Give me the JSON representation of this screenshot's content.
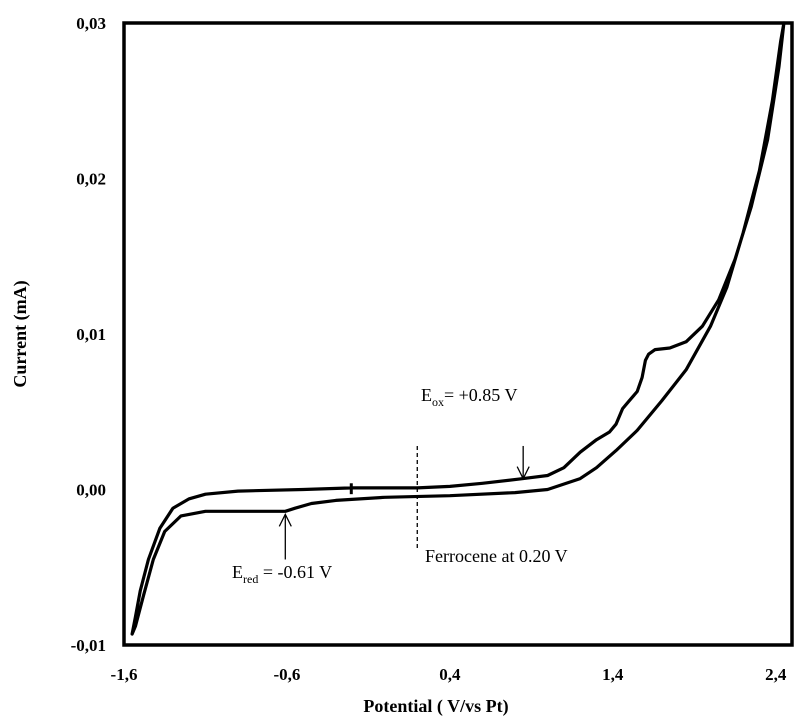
{
  "chart_data": {
    "type": "line",
    "title": "",
    "xlabel": "Potential ( V/vs Pt)",
    "ylabel": "Current (mA)",
    "xlim": [
      -1.6,
      2.5
    ],
    "ylim": [
      -0.01,
      0.03
    ],
    "x_ticks": [
      "-1,6",
      "-0,6",
      "0,4",
      "1,4",
      "2,4"
    ],
    "x_tick_values": [
      -1.6,
      -0.6,
      0.4,
      1.4,
      2.4
    ],
    "y_ticks": [
      "-0,01",
      "0,00",
      "0,01",
      "0,02",
      "0,03"
    ],
    "y_tick_values": [
      -0.01,
      0.0,
      0.01,
      0.02,
      0.03
    ],
    "grid": false,
    "series": [
      {
        "values": [
          [
            -0.2,
            0.0001
          ],
          [
            -0.5,
            0.0
          ],
          [
            -0.9,
            -0.0001
          ],
          [
            -1.1,
            -0.0003
          ],
          [
            -1.2,
            -0.0006
          ],
          [
            -1.3,
            -0.0012
          ],
          [
            -1.38,
            -0.0025
          ],
          [
            -1.45,
            -0.0045
          ],
          [
            -1.5,
            -0.0065
          ],
          [
            -1.53,
            -0.0082
          ],
          [
            -1.55,
            -0.0093
          ],
          [
            -1.53,
            -0.0088
          ],
          [
            -1.48,
            -0.0068
          ],
          [
            -1.42,
            -0.0045
          ],
          [
            -1.35,
            -0.0027
          ],
          [
            -1.25,
            -0.0017
          ],
          [
            -1.1,
            -0.0014
          ],
          [
            -0.9,
            -0.0014
          ],
          [
            -0.75,
            -0.0014
          ],
          [
            -0.61,
            -0.0014
          ],
          [
            -0.55,
            -0.0012
          ],
          [
            -0.45,
            -0.0009
          ],
          [
            -0.3,
            -0.0007
          ],
          [
            0.0,
            -0.0005
          ],
          [
            0.4,
            -0.0004
          ],
          [
            0.8,
            -0.0002
          ],
          [
            1.0,
            0.0
          ],
          [
            1.2,
            0.0007
          ],
          [
            1.3,
            0.0014
          ],
          [
            1.42,
            0.0025
          ],
          [
            1.55,
            0.0038
          ],
          [
            1.7,
            0.0057
          ],
          [
            1.85,
            0.0077
          ],
          [
            2.0,
            0.0105
          ],
          [
            2.1,
            0.013
          ],
          [
            2.2,
            0.0165
          ],
          [
            2.3,
            0.0205
          ],
          [
            2.38,
            0.025
          ],
          [
            2.43,
            0.0288
          ],
          [
            2.45,
            0.03
          ],
          [
            2.42,
            0.0272
          ],
          [
            2.35,
            0.0225
          ],
          [
            2.25,
            0.0182
          ],
          [
            2.15,
            0.0148
          ],
          [
            2.05,
            0.0122
          ],
          [
            1.95,
            0.0105
          ],
          [
            1.85,
            0.0095
          ],
          [
            1.75,
            0.0091
          ],
          [
            1.66,
            0.009
          ],
          [
            1.62,
            0.0087
          ],
          [
            1.6,
            0.0083
          ],
          [
            1.58,
            0.0072
          ],
          [
            1.55,
            0.0063
          ],
          [
            1.5,
            0.0057
          ],
          [
            1.46,
            0.0052
          ],
          [
            1.42,
            0.0042
          ],
          [
            1.38,
            0.0037
          ],
          [
            1.3,
            0.0032
          ],
          [
            1.2,
            0.0024
          ],
          [
            1.1,
            0.0014
          ],
          [
            1.0,
            0.0009
          ],
          [
            0.85,
            0.0007
          ],
          [
            0.6,
            0.0004
          ],
          [
            0.4,
            0.0002
          ],
          [
            0.2,
            0.0001
          ],
          [
            0.0,
            0.0001
          ],
          [
            -0.21,
            0.0001
          ]
        ]
      }
    ],
    "annotations": [
      {
        "text_main": "E",
        "text_sub": "ox",
        "text_rest": "= +0.85 V",
        "arrow_x": 0.85,
        "arrow_y_from": 0.0028,
        "arrow_y_to": 0.0007
      },
      {
        "text_main": "E",
        "text_sub": "red",
        "text_rest": " = -0.61 V",
        "arrow_x": -0.61,
        "arrow_y_from": -0.0045,
        "arrow_y_to": -0.0016
      },
      {
        "text": "Ferrocene at 0.20 V",
        "line_x": 0.2,
        "line_y_from": 0.0028,
        "line_y_to": -0.0039
      }
    ]
  }
}
